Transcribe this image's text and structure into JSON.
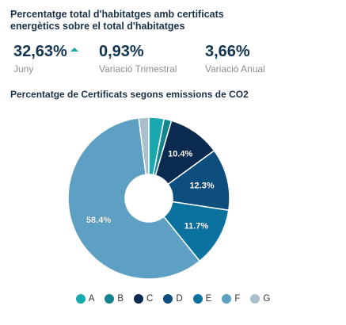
{
  "header": {
    "title": "Percentatge total d'habitatges amb certificats energètics sobre el total d'habitatges"
  },
  "kpis": [
    {
      "value": "32,63%",
      "label": "Juny",
      "trend": "up"
    },
    {
      "value": "0,93%",
      "label": "Variació Trimestral"
    },
    {
      "value": "3,66%",
      "label": "Variació Anual"
    }
  ],
  "colors": {
    "trend_up": "#14a3a8"
  },
  "chart_data": {
    "type": "pie",
    "title": "Percentatge de Certificats segons emissions de CO2",
    "donut": true,
    "legend_position": "bottom",
    "categories": [
      "A",
      "B",
      "C",
      "D",
      "E",
      "F",
      "G"
    ],
    "values": [
      3.0,
      1.5,
      10.4,
      12.3,
      11.7,
      58.4,
      2.0
    ],
    "data_labels": [
      "",
      "",
      "10.4%",
      "12.3%",
      "11.7%",
      "58.4%",
      ""
    ],
    "colors": [
      "#19a8ad",
      "#12858f",
      "#0b2a4f",
      "#0e4e7f",
      "#0b72a0",
      "#5e9fc4",
      "#a9bfcc"
    ]
  }
}
